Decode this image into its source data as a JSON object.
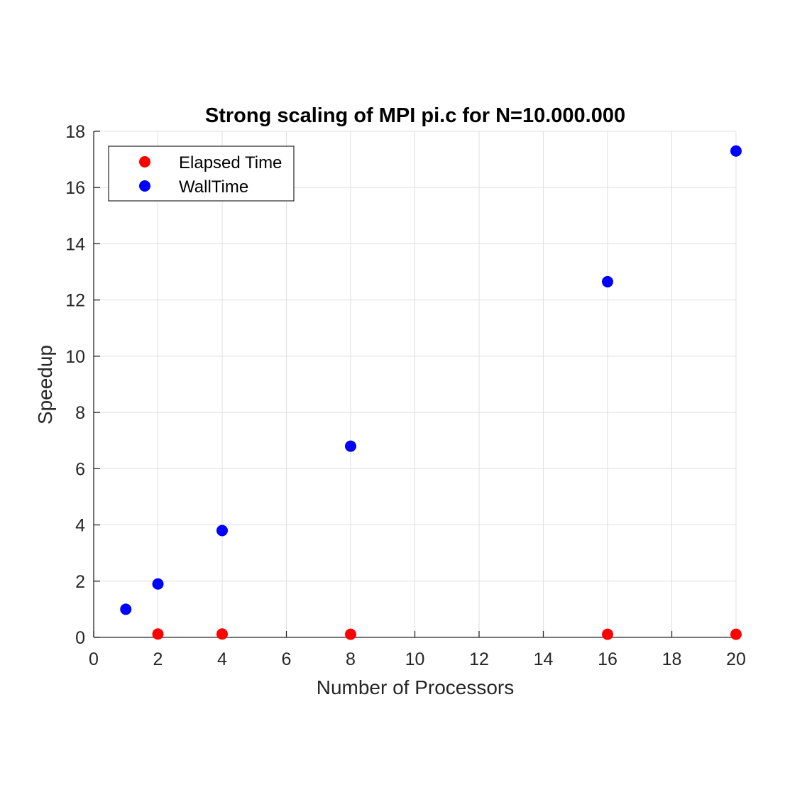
{
  "chart_data": {
    "type": "scatter",
    "title": "Strong scaling of MPI pi.c for N=10.000.000",
    "xlabel": "Number of Processors",
    "ylabel": "Speedup",
    "xlim": [
      0,
      20
    ],
    "ylim": [
      0,
      18
    ],
    "xticks": [
      "0",
      "2",
      "4",
      "6",
      "8",
      "10",
      "12",
      "14",
      "16",
      "18",
      "20"
    ],
    "yticks": [
      "0",
      "2",
      "4",
      "6",
      "8",
      "10",
      "12",
      "14",
      "16",
      "18"
    ],
    "grid": true,
    "legend_position": "top-left",
    "series": [
      {
        "name": "Elapsed Time",
        "color": "#ff0000",
        "x": [
          2,
          4,
          8,
          16,
          20
        ],
        "y": [
          0.12,
          0.12,
          0.11,
          0.11,
          0.11
        ]
      },
      {
        "name": "WallTime",
        "color": "#0000ff",
        "x": [
          1,
          2,
          4,
          8,
          16,
          20
        ],
        "y": [
          1.0,
          1.9,
          3.8,
          6.8,
          12.65,
          17.3
        ]
      }
    ]
  }
}
